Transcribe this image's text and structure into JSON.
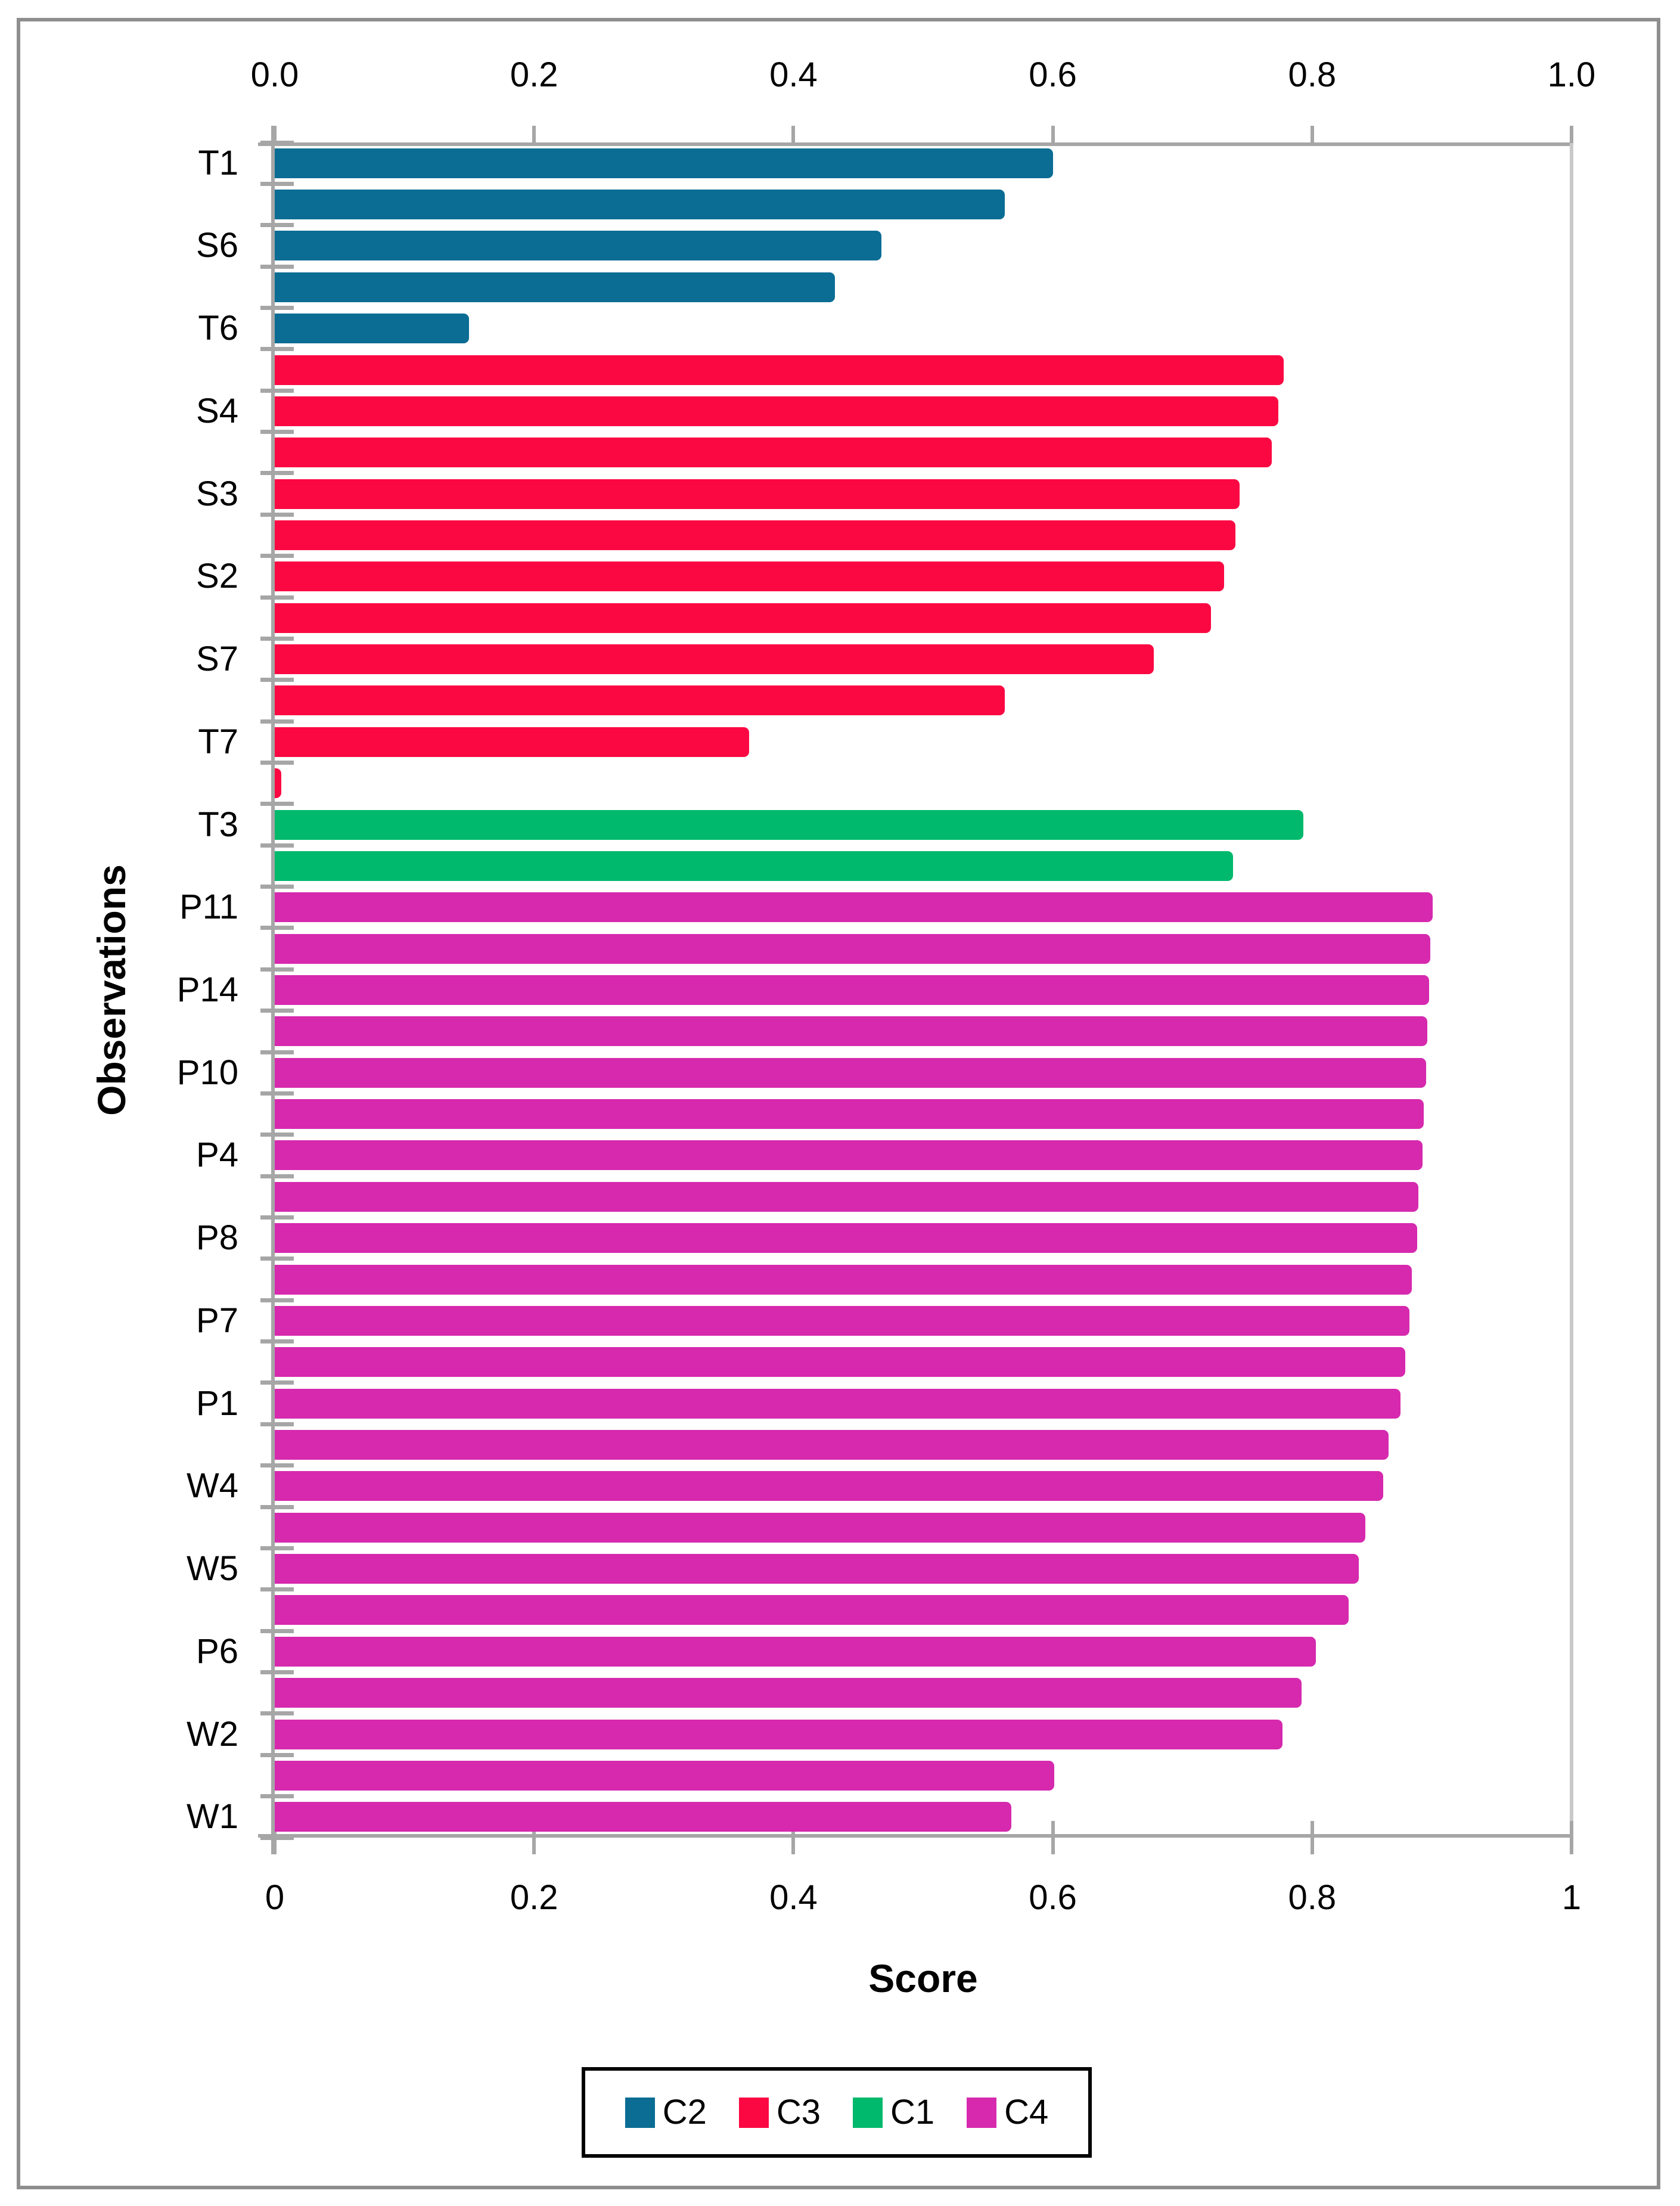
{
  "chart_data": {
    "type": "bar",
    "orientation": "horizontal",
    "title": "",
    "xlabel": "Score",
    "ylabel": "Observations",
    "xlim": [
      0,
      1
    ],
    "grid": false,
    "top_axis_ticks": [
      {
        "value": 0.0,
        "label": "0.0"
      },
      {
        "value": 0.2,
        "label": "0.2"
      },
      {
        "value": 0.4,
        "label": "0.4"
      },
      {
        "value": 0.6,
        "label": "0.6"
      },
      {
        "value": 0.8,
        "label": "0.8"
      },
      {
        "value": 1.0,
        "label": "1.0"
      }
    ],
    "bottom_axis_ticks": [
      {
        "value": 0.0,
        "label": "0"
      },
      {
        "value": 0.2,
        "label": "0.2"
      },
      {
        "value": 0.4,
        "label": "0.4"
      },
      {
        "value": 0.6,
        "label": "0.6"
      },
      {
        "value": 0.8,
        "label": "0.8"
      },
      {
        "value": 1.0,
        "label": "1"
      }
    ],
    "series_colors": {
      "C2": "#0B6D94",
      "C3": "#FB0843",
      "C1": "#00B96C",
      "C4": "#D629AE"
    },
    "legend": {
      "position": "bottom-center",
      "entries": [
        "C2",
        "C3",
        "C1",
        "C4"
      ]
    },
    "colors": {
      "axis": "#A6A6A6",
      "plot_right_border": "#C9C9C9",
      "figure_border": "#8E8E8E",
      "legend_border": "#000000",
      "text": "#000000",
      "background": "#FFFFFF"
    },
    "bars": [
      {
        "label": "T1",
        "series": "C2",
        "value": 0.6
      },
      {
        "label": "",
        "series": "C2",
        "value": 0.563
      },
      {
        "label": "S6",
        "series": "C2",
        "value": 0.468
      },
      {
        "label": "",
        "series": "C2",
        "value": 0.432
      },
      {
        "label": "T6",
        "series": "C2",
        "value": 0.15
      },
      {
        "label": "",
        "series": "C3",
        "value": 0.778
      },
      {
        "label": "S4",
        "series": "C3",
        "value": 0.774
      },
      {
        "label": "",
        "series": "C3",
        "value": 0.769
      },
      {
        "label": "S3",
        "series": "C3",
        "value": 0.744
      },
      {
        "label": "",
        "series": "C3",
        "value": 0.741
      },
      {
        "label": "S2",
        "series": "C3",
        "value": 0.732
      },
      {
        "label": "",
        "series": "C3",
        "value": 0.722
      },
      {
        "label": "S7",
        "series": "C3",
        "value": 0.678
      },
      {
        "label": "",
        "series": "C3",
        "value": 0.563
      },
      {
        "label": "T7",
        "series": "C3",
        "value": 0.366
      },
      {
        "label": "",
        "series": "C3",
        "value": 0.005
      },
      {
        "label": "T3",
        "series": "C1",
        "value": 0.793
      },
      {
        "label": "",
        "series": "C1",
        "value": 0.739
      },
      {
        "label": "P11",
        "series": "C4",
        "value": 0.893
      },
      {
        "label": "",
        "series": "C4",
        "value": 0.891
      },
      {
        "label": "P14",
        "series": "C4",
        "value": 0.89
      },
      {
        "label": "",
        "series": "C4",
        "value": 0.889
      },
      {
        "label": "P10",
        "series": "C4",
        "value": 0.888
      },
      {
        "label": "",
        "series": "C4",
        "value": 0.886
      },
      {
        "label": "P4",
        "series": "C4",
        "value": 0.885
      },
      {
        "label": "",
        "series": "C4",
        "value": 0.882
      },
      {
        "label": "P8",
        "series": "C4",
        "value": 0.881
      },
      {
        "label": "",
        "series": "C4",
        "value": 0.877
      },
      {
        "label": "P7",
        "series": "C4",
        "value": 0.875
      },
      {
        "label": "",
        "series": "C4",
        "value": 0.872
      },
      {
        "label": "P1",
        "series": "C4",
        "value": 0.868
      },
      {
        "label": "",
        "series": "C4",
        "value": 0.859
      },
      {
        "label": "W4",
        "series": "C4",
        "value": 0.855
      },
      {
        "label": "",
        "series": "C4",
        "value": 0.841
      },
      {
        "label": "W5",
        "series": "C4",
        "value": 0.836
      },
      {
        "label": "",
        "series": "C4",
        "value": 0.828
      },
      {
        "label": "P6",
        "series": "C4",
        "value": 0.803
      },
      {
        "label": "",
        "series": "C4",
        "value": 0.792
      },
      {
        "label": "W2",
        "series": "C4",
        "value": 0.777
      },
      {
        "label": "",
        "series": "C4",
        "value": 0.601
      },
      {
        "label": "W1",
        "series": "C4",
        "value": 0.568
      }
    ]
  }
}
